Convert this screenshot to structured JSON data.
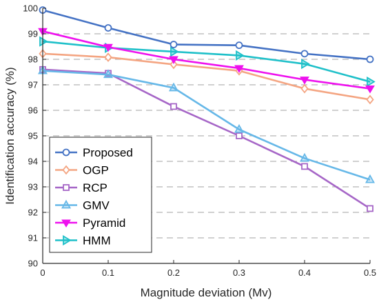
{
  "chart_data": {
    "type": "line",
    "xlabel": "Magnitude deviation (Mv)",
    "ylabel": "Identification accuracy (%)",
    "xlim": [
      0,
      0.5
    ],
    "ylim": [
      90,
      100
    ],
    "x": [
      0,
      0.1,
      0.2,
      0.3,
      0.4,
      0.5
    ],
    "xticks": [
      "0",
      "0.1",
      "0.2",
      "0.3",
      "0.4",
      "0.5"
    ],
    "yticks": [
      "90",
      "91",
      "92",
      "93",
      "94",
      "95",
      "96",
      "97",
      "98",
      "99",
      "100"
    ],
    "grid": "horizontal dashed",
    "legend": "bottom-left",
    "series": [
      {
        "name": "Proposed",
        "values": [
          99.93,
          99.23,
          98.58,
          98.55,
          98.22,
          98.0
        ],
        "color": "#4472c4",
        "marker": "circle"
      },
      {
        "name": "OGP",
        "values": [
          98.22,
          98.08,
          97.8,
          97.55,
          96.85,
          96.42
        ],
        "color": "#f4a582",
        "marker": "diamond"
      },
      {
        "name": "RCP",
        "values": [
          97.6,
          97.45,
          96.15,
          95.0,
          93.8,
          92.15
        ],
        "color": "#a666c7",
        "marker": "square"
      },
      {
        "name": "GMV",
        "values": [
          97.55,
          97.4,
          96.88,
          95.25,
          94.12,
          93.28
        ],
        "color": "#66b8e8",
        "marker": "triangle-up"
      },
      {
        "name": "Pyramid",
        "values": [
          99.1,
          98.48,
          98.0,
          97.65,
          97.2,
          96.85
        ],
        "color": "#ee11ee",
        "marker": "triangle-down"
      },
      {
        "name": "HMM",
        "values": [
          98.7,
          98.45,
          98.3,
          98.15,
          97.82,
          97.12
        ],
        "color": "#1fc0c9",
        "marker": "triangle-right"
      }
    ]
  }
}
